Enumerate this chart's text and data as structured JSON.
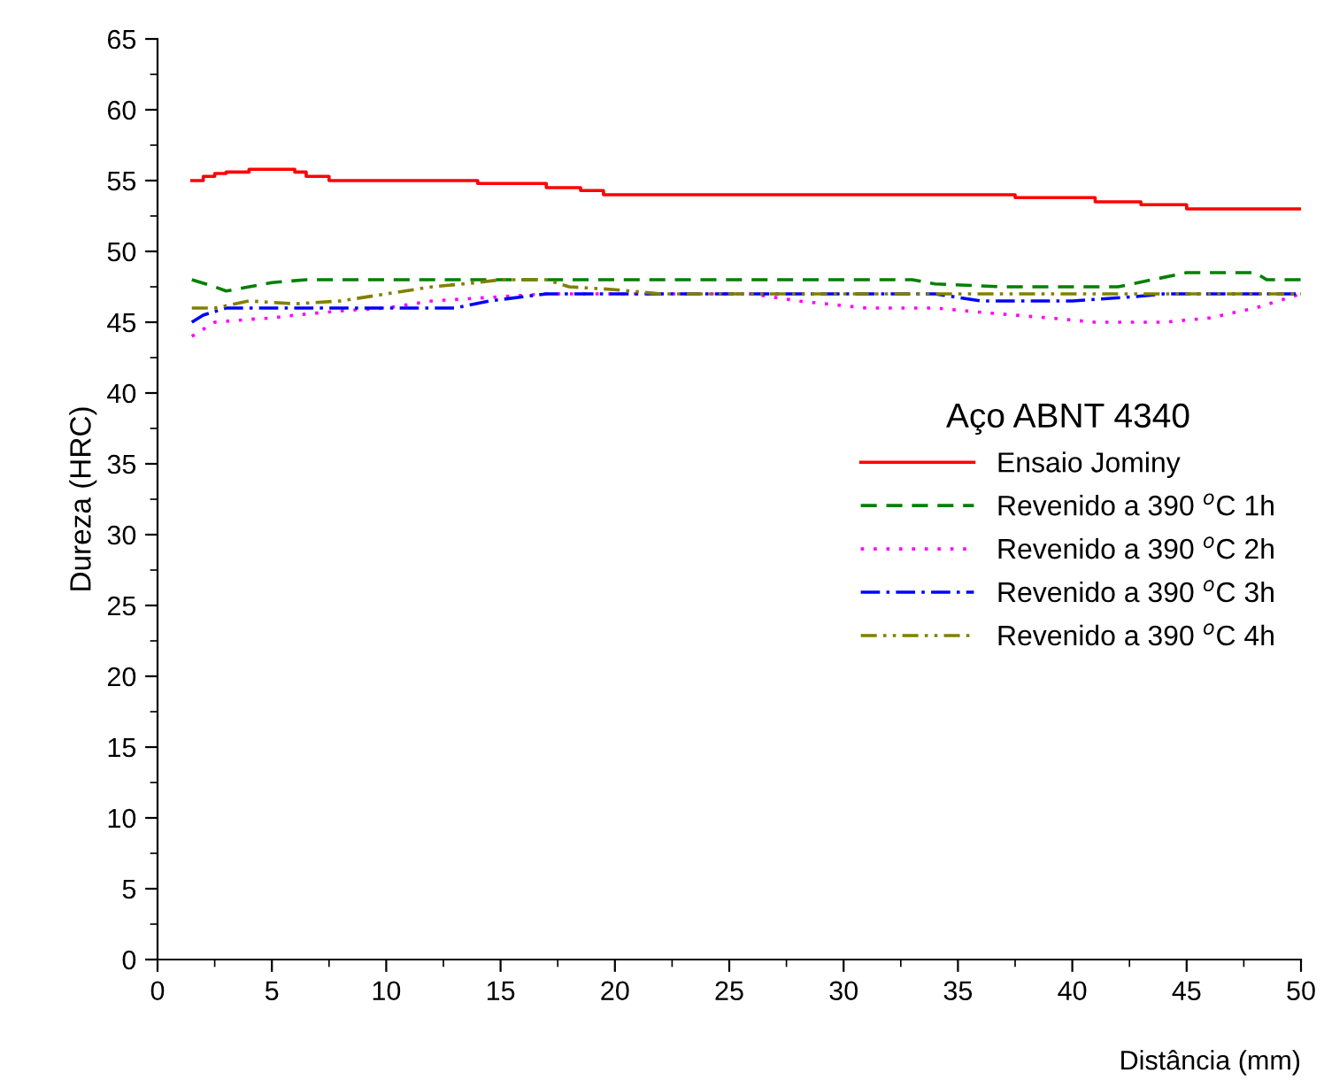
{
  "chart_data": {
    "type": "line",
    "xlabel": "Distância (mm)",
    "ylabel": "Dureza (HRC)",
    "legend_title": "Aço ABNT 4340",
    "xlim": [
      0,
      50
    ],
    "ylim": [
      0,
      65
    ],
    "xticks": [
      0,
      5,
      10,
      15,
      20,
      25,
      30,
      35,
      40,
      45,
      50
    ],
    "yticks": [
      0,
      5,
      10,
      15,
      20,
      25,
      30,
      35,
      40,
      45,
      50,
      55,
      60,
      65
    ],
    "grid": false,
    "legend": "right",
    "series": [
      {
        "name": "Ensaio Jominy",
        "type": "step",
        "color": "#ff0000",
        "line_style": "solid",
        "x": [
          1.5,
          2,
          2.5,
          3,
          4,
          6,
          6.5,
          7.5,
          14,
          17,
          18.5,
          19.5,
          37.5,
          41,
          43,
          45,
          50
        ],
        "values": [
          55,
          55.3,
          55.5,
          55.6,
          55.8,
          55.6,
          55.3,
          55,
          54.8,
          54.5,
          54.3,
          54,
          53.8,
          53.5,
          53.3,
          53,
          53
        ]
      },
      {
        "name": "Revenido a 390 $^{o}$C 1h",
        "color": "#008000",
        "line_style": "dashed",
        "x": [
          1.5,
          2.5,
          3,
          4,
          5,
          6.5,
          33,
          34,
          37,
          42,
          43.5,
          45,
          48,
          48.5,
          50
        ],
        "values": [
          48,
          47.5,
          47.2,
          47.5,
          47.8,
          48,
          48,
          47.7,
          47.5,
          47.5,
          48,
          48.5,
          48.5,
          48,
          48
        ]
      },
      {
        "name": "Revenido a 390 $^{o}$C 2h",
        "color": "#ff00ff",
        "line_style": "dotted",
        "x": [
          1.5,
          2.5,
          4,
          5,
          6,
          8,
          10,
          12,
          17,
          26,
          28,
          31,
          34,
          36,
          39,
          41,
          44,
          46,
          48,
          50
        ],
        "values": [
          44,
          45,
          45.2,
          45.3,
          45.5,
          45.8,
          46,
          46.5,
          47,
          47,
          46.5,
          46,
          46,
          45.7,
          45.3,
          45,
          45,
          45.3,
          46,
          47
        ]
      },
      {
        "name": "Revenido a 390 $^{o}$C 3h",
        "color": "#0000ff",
        "line_style": "dashdot",
        "x": [
          1.5,
          2,
          3,
          13,
          14.5,
          17,
          34,
          36,
          40,
          42.7,
          44,
          50
        ],
        "values": [
          45,
          45.5,
          46,
          46,
          46.5,
          47,
          47,
          46.5,
          46.5,
          46.8,
          47,
          47
        ]
      },
      {
        "name": "Revenido a 390 $^{o}$C 4h",
        "color": "#808000",
        "line_style": "dashdotdot",
        "x": [
          1.5,
          2.5,
          4,
          6,
          8,
          10,
          12,
          14,
          15,
          17,
          18,
          20,
          22,
          50
        ],
        "values": [
          46,
          46,
          46.5,
          46.3,
          46.5,
          47,
          47.5,
          47.8,
          48,
          48,
          47.5,
          47.3,
          47,
          47
        ]
      }
    ]
  }
}
